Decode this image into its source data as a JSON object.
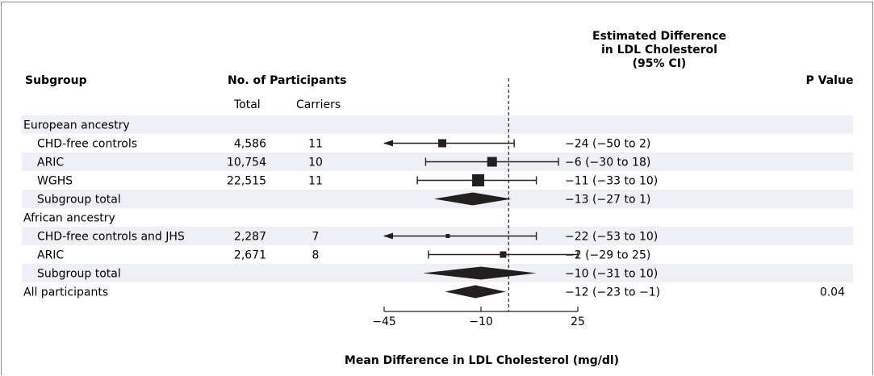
{
  "headers": {
    "subgroup": "Subgroup",
    "participants": "No. of Participants",
    "total": "Total",
    "carriers": "Carriers",
    "estimate": [
      "Estimated Difference",
      "in LDL Cholesterol",
      "(95% CI)"
    ],
    "pvalue": "P Value"
  },
  "chart_data": {
    "type": "forest",
    "xlabel": "Mean Difference in LDL Cholesterol (mg/dl)",
    "xlim": [
      -45,
      25
    ],
    "xticks": [
      -45,
      -10,
      25
    ],
    "reference_line": 0,
    "rows": [
      {
        "label": "European ancestry",
        "indent": false,
        "shaded": true,
        "kind": "header"
      },
      {
        "label": "CHD-free controls",
        "indent": true,
        "shaded": false,
        "kind": "study",
        "total": "4,586",
        "carriers": "11",
        "estimate": -24,
        "lower": -50,
        "upper": 2,
        "ci_text": "−24 (−50 to 2)",
        "arrow_left": true,
        "weight": 10
      },
      {
        "label": "ARIC",
        "indent": true,
        "shaded": true,
        "kind": "study",
        "total": "10,754",
        "carriers": "10",
        "estimate": -6,
        "lower": -30,
        "upper": 18,
        "ci_text": "−6 (−30 to 18)",
        "weight": 12
      },
      {
        "label": "WGHS",
        "indent": true,
        "shaded": false,
        "kind": "study",
        "total": "22,515",
        "carriers": "11",
        "estimate": -11,
        "lower": -33,
        "upper": 10,
        "ci_text": "−11 (−33 to 10)",
        "weight": 15
      },
      {
        "label": "Subgroup total",
        "indent": true,
        "shaded": true,
        "kind": "pooled",
        "estimate": -13,
        "lower": -27,
        "upper": 1,
        "ci_text": "−13 (−27 to 1)"
      },
      {
        "label": "African ancestry",
        "indent": false,
        "shaded": false,
        "kind": "header"
      },
      {
        "label": "CHD-free controls and JHS",
        "indent": true,
        "shaded": true,
        "kind": "study",
        "total": "2,287",
        "carriers": "7",
        "estimate": -22,
        "lower": -53,
        "upper": 10,
        "ci_text": "−22 (−53 to 10)",
        "arrow_left": true,
        "weight": 5
      },
      {
        "label": "ARIC",
        "indent": true,
        "shaded": false,
        "kind": "study",
        "total": "2,671",
        "carriers": "8",
        "estimate": -2,
        "lower": -29,
        "upper": 25,
        "ci_text": "−2 (−29 to 25)",
        "weight": 8
      },
      {
        "label": "Subgroup total",
        "indent": true,
        "shaded": true,
        "kind": "pooled",
        "estimate": -10,
        "lower": -31,
        "upper": 10,
        "ci_text": "−10 (−31 to 10)"
      },
      {
        "label": "All participants",
        "indent": false,
        "shaded": false,
        "kind": "pooled",
        "estimate": -12,
        "lower": -23,
        "upper": -1,
        "ci_text": "−12 (−23 to −1)",
        "pvalue": "0.04"
      }
    ]
  }
}
